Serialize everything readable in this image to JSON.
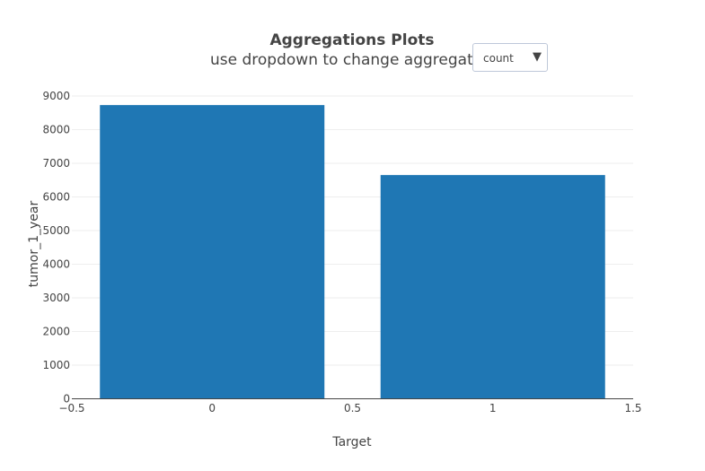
{
  "chart_data": {
    "type": "bar",
    "title": "Aggregations Plots",
    "subtitle": "use dropdown to change aggregat",
    "xlabel": "Target",
    "ylabel": "tumor_1_year",
    "x": [
      0,
      1
    ],
    "values": [
      8730,
      6650
    ],
    "xlim": [
      -0.5,
      1.5
    ],
    "ylim": [
      0,
      9000
    ],
    "x_ticks": [
      "−0.5",
      "0",
      "0.5",
      "1",
      "1.5"
    ],
    "y_ticks": [
      "0",
      "1000",
      "2000",
      "3000",
      "4000",
      "5000",
      "6000",
      "7000",
      "8000",
      "9000"
    ],
    "bar_color": "#1f77b4",
    "grid": true
  },
  "dropdown": {
    "selected": "count",
    "arrow_icon": "triangle-down-icon"
  }
}
